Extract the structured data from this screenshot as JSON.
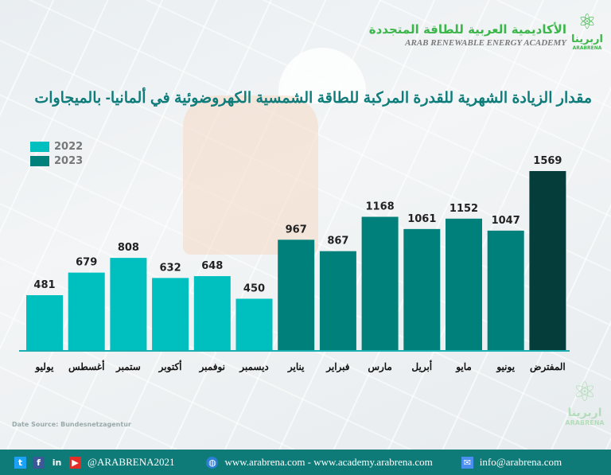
{
  "brand": {
    "name_ar": "الأكاديمية العربية للطاقة المتجددة",
    "name_en": "ARAB RENEWABLE ENERGY ACADEMY",
    "logo_ar": "اربرينا",
    "logo_en": "ARABRENA"
  },
  "chart_data": {
    "type": "bar",
    "title": "مقدار الزيادة الشهرية للقدرة المركبة للطاقة الشمسية الكهروضوئية في ألمانيا- بالميجاوات",
    "categories": [
      "يوليو",
      "أغسطس",
      "ستمبر",
      "أكتوبر",
      "نوفمبر",
      "ديسمبر",
      "يناير",
      "فبراير",
      "مارس",
      "أبريل",
      "مايو",
      "يونيو",
      "المفترض"
    ],
    "values": [
      481,
      679,
      808,
      632,
      648,
      450,
      967,
      867,
      1168,
      1061,
      1152,
      1047,
      1569
    ],
    "groups": [
      "2022",
      "2022",
      "2022",
      "2022",
      "2022",
      "2022",
      "2023",
      "2023",
      "2023",
      "2023",
      "2023",
      "2023",
      "projected"
    ],
    "legend": [
      {
        "name": "2022",
        "color": "#00bfbf"
      },
      {
        "name": "2023",
        "color": "#00807b"
      }
    ],
    "projected_color": "#053d3a",
    "legend_placement": "top-left",
    "grid": false,
    "ylim": [
      0,
      1600
    ]
  },
  "source": "Date Source: Bundesnetzagentur",
  "footer": {
    "handle": "@ARABRENA2021",
    "websites": "www.arabrena.com - www.academy.arabrena.com",
    "email": "info@arabrena.com"
  }
}
